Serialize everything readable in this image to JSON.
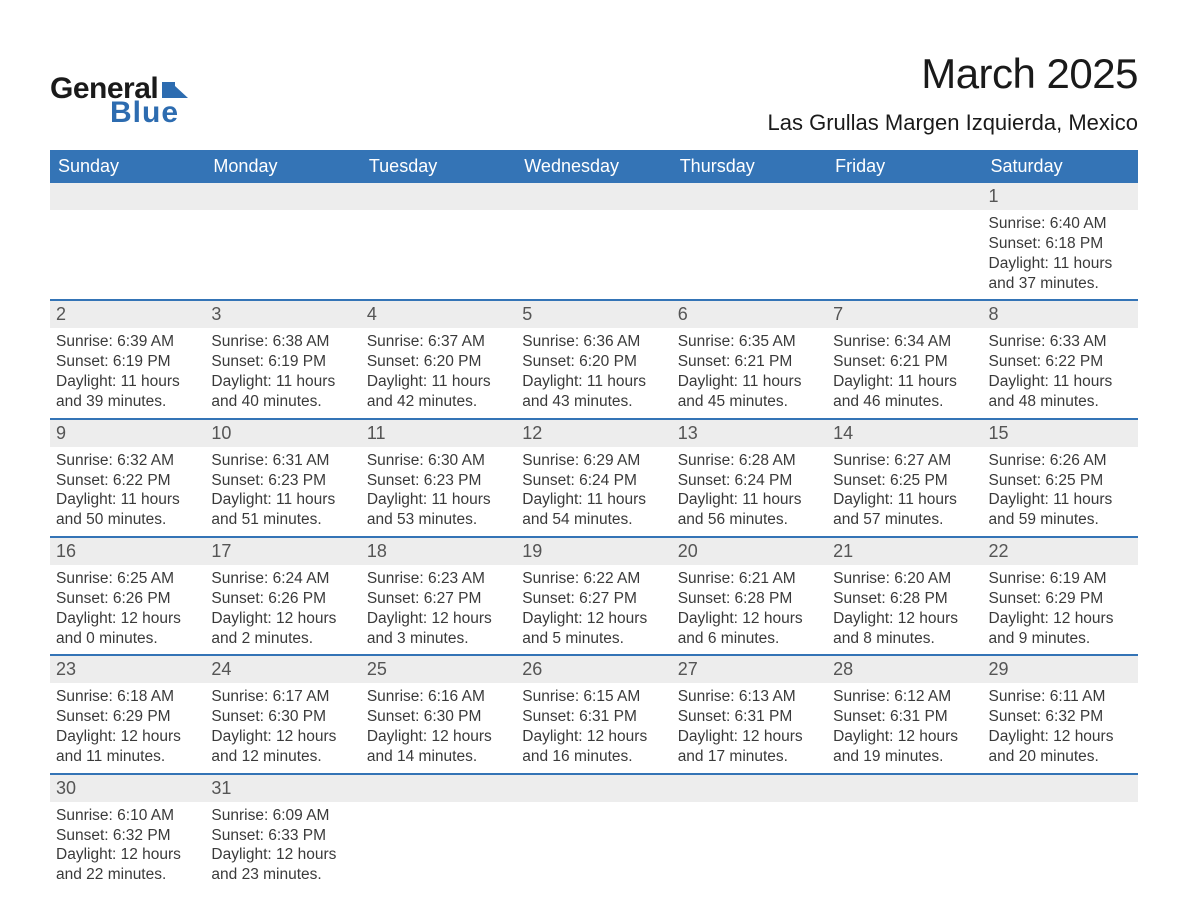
{
  "logo": {
    "text_general": "General",
    "text_blue": "Blue",
    "icon_color": "#2d6cb0"
  },
  "title": "March 2025",
  "subtitle": "Las Grullas Margen Izquierda, Mexico",
  "colors": {
    "header_bg": "#3474b6",
    "header_text": "#ffffff",
    "daynum_bg": "#ededed",
    "daynum_text": "#555555",
    "body_text": "#3a3a3a",
    "rule": "#3474b6",
    "page_bg": "#ffffff"
  },
  "typography": {
    "title_fontsize": 42,
    "subtitle_fontsize": 22,
    "header_fontsize": 18,
    "daynum_fontsize": 18,
    "cell_fontsize": 15.5,
    "logo_fontsize": 30
  },
  "weekdays": [
    "Sunday",
    "Monday",
    "Tuesday",
    "Wednesday",
    "Thursday",
    "Friday",
    "Saturday"
  ],
  "weeks": [
    [
      null,
      null,
      null,
      null,
      null,
      null,
      {
        "day": "1",
        "sunrise": "Sunrise: 6:40 AM",
        "sunset": "Sunset: 6:18 PM",
        "day1": "Daylight: 11 hours",
        "day2": "and 37 minutes."
      }
    ],
    [
      {
        "day": "2",
        "sunrise": "Sunrise: 6:39 AM",
        "sunset": "Sunset: 6:19 PM",
        "day1": "Daylight: 11 hours",
        "day2": "and 39 minutes."
      },
      {
        "day": "3",
        "sunrise": "Sunrise: 6:38 AM",
        "sunset": "Sunset: 6:19 PM",
        "day1": "Daylight: 11 hours",
        "day2": "and 40 minutes."
      },
      {
        "day": "4",
        "sunrise": "Sunrise: 6:37 AM",
        "sunset": "Sunset: 6:20 PM",
        "day1": "Daylight: 11 hours",
        "day2": "and 42 minutes."
      },
      {
        "day": "5",
        "sunrise": "Sunrise: 6:36 AM",
        "sunset": "Sunset: 6:20 PM",
        "day1": "Daylight: 11 hours",
        "day2": "and 43 minutes."
      },
      {
        "day": "6",
        "sunrise": "Sunrise: 6:35 AM",
        "sunset": "Sunset: 6:21 PM",
        "day1": "Daylight: 11 hours",
        "day2": "and 45 minutes."
      },
      {
        "day": "7",
        "sunrise": "Sunrise: 6:34 AM",
        "sunset": "Sunset: 6:21 PM",
        "day1": "Daylight: 11 hours",
        "day2": "and 46 minutes."
      },
      {
        "day": "8",
        "sunrise": "Sunrise: 6:33 AM",
        "sunset": "Sunset: 6:22 PM",
        "day1": "Daylight: 11 hours",
        "day2": "and 48 minutes."
      }
    ],
    [
      {
        "day": "9",
        "sunrise": "Sunrise: 6:32 AM",
        "sunset": "Sunset: 6:22 PM",
        "day1": "Daylight: 11 hours",
        "day2": "and 50 minutes."
      },
      {
        "day": "10",
        "sunrise": "Sunrise: 6:31 AM",
        "sunset": "Sunset: 6:23 PM",
        "day1": "Daylight: 11 hours",
        "day2": "and 51 minutes."
      },
      {
        "day": "11",
        "sunrise": "Sunrise: 6:30 AM",
        "sunset": "Sunset: 6:23 PM",
        "day1": "Daylight: 11 hours",
        "day2": "and 53 minutes."
      },
      {
        "day": "12",
        "sunrise": "Sunrise: 6:29 AM",
        "sunset": "Sunset: 6:24 PM",
        "day1": "Daylight: 11 hours",
        "day2": "and 54 minutes."
      },
      {
        "day": "13",
        "sunrise": "Sunrise: 6:28 AM",
        "sunset": "Sunset: 6:24 PM",
        "day1": "Daylight: 11 hours",
        "day2": "and 56 minutes."
      },
      {
        "day": "14",
        "sunrise": "Sunrise: 6:27 AM",
        "sunset": "Sunset: 6:25 PM",
        "day1": "Daylight: 11 hours",
        "day2": "and 57 minutes."
      },
      {
        "day": "15",
        "sunrise": "Sunrise: 6:26 AM",
        "sunset": "Sunset: 6:25 PM",
        "day1": "Daylight: 11 hours",
        "day2": "and 59 minutes."
      }
    ],
    [
      {
        "day": "16",
        "sunrise": "Sunrise: 6:25 AM",
        "sunset": "Sunset: 6:26 PM",
        "day1": "Daylight: 12 hours",
        "day2": "and 0 minutes."
      },
      {
        "day": "17",
        "sunrise": "Sunrise: 6:24 AM",
        "sunset": "Sunset: 6:26 PM",
        "day1": "Daylight: 12 hours",
        "day2": "and 2 minutes."
      },
      {
        "day": "18",
        "sunrise": "Sunrise: 6:23 AM",
        "sunset": "Sunset: 6:27 PM",
        "day1": "Daylight: 12 hours",
        "day2": "and 3 minutes."
      },
      {
        "day": "19",
        "sunrise": "Sunrise: 6:22 AM",
        "sunset": "Sunset: 6:27 PM",
        "day1": "Daylight: 12 hours",
        "day2": "and 5 minutes."
      },
      {
        "day": "20",
        "sunrise": "Sunrise: 6:21 AM",
        "sunset": "Sunset: 6:28 PM",
        "day1": "Daylight: 12 hours",
        "day2": "and 6 minutes."
      },
      {
        "day": "21",
        "sunrise": "Sunrise: 6:20 AM",
        "sunset": "Sunset: 6:28 PM",
        "day1": "Daylight: 12 hours",
        "day2": "and 8 minutes."
      },
      {
        "day": "22",
        "sunrise": "Sunrise: 6:19 AM",
        "sunset": "Sunset: 6:29 PM",
        "day1": "Daylight: 12 hours",
        "day2": "and 9 minutes."
      }
    ],
    [
      {
        "day": "23",
        "sunrise": "Sunrise: 6:18 AM",
        "sunset": "Sunset: 6:29 PM",
        "day1": "Daylight: 12 hours",
        "day2": "and 11 minutes."
      },
      {
        "day": "24",
        "sunrise": "Sunrise: 6:17 AM",
        "sunset": "Sunset: 6:30 PM",
        "day1": "Daylight: 12 hours",
        "day2": "and 12 minutes."
      },
      {
        "day": "25",
        "sunrise": "Sunrise: 6:16 AM",
        "sunset": "Sunset: 6:30 PM",
        "day1": "Daylight: 12 hours",
        "day2": "and 14 minutes."
      },
      {
        "day": "26",
        "sunrise": "Sunrise: 6:15 AM",
        "sunset": "Sunset: 6:31 PM",
        "day1": "Daylight: 12 hours",
        "day2": "and 16 minutes."
      },
      {
        "day": "27",
        "sunrise": "Sunrise: 6:13 AM",
        "sunset": "Sunset: 6:31 PM",
        "day1": "Daylight: 12 hours",
        "day2": "and 17 minutes."
      },
      {
        "day": "28",
        "sunrise": "Sunrise: 6:12 AM",
        "sunset": "Sunset: 6:31 PM",
        "day1": "Daylight: 12 hours",
        "day2": "and 19 minutes."
      },
      {
        "day": "29",
        "sunrise": "Sunrise: 6:11 AM",
        "sunset": "Sunset: 6:32 PM",
        "day1": "Daylight: 12 hours",
        "day2": "and 20 minutes."
      }
    ],
    [
      {
        "day": "30",
        "sunrise": "Sunrise: 6:10 AM",
        "sunset": "Sunset: 6:32 PM",
        "day1": "Daylight: 12 hours",
        "day2": "and 22 minutes."
      },
      {
        "day": "31",
        "sunrise": "Sunrise: 6:09 AM",
        "sunset": "Sunset: 6:33 PM",
        "day1": "Daylight: 12 hours",
        "day2": "and 23 minutes."
      },
      null,
      null,
      null,
      null,
      null
    ]
  ]
}
